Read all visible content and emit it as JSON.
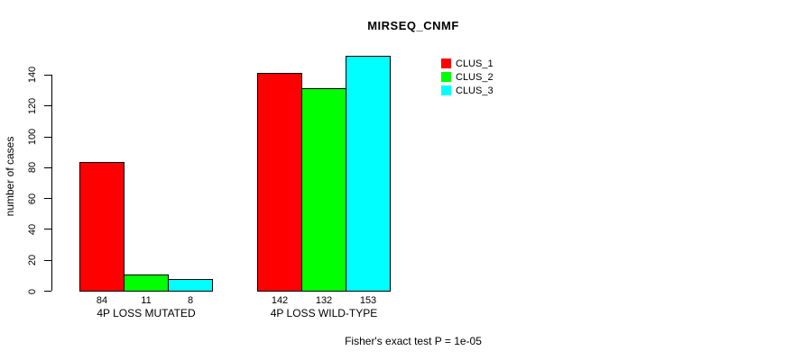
{
  "chart_data": {
    "type": "bar",
    "title": "MIRSEQ_CNMF",
    "ylabel": "number of cases",
    "xlabel": "",
    "categories": [
      "4P LOSS MUTATED",
      "4P LOSS WILD-TYPE"
    ],
    "series": [
      {
        "name": "CLUS_1",
        "color": "#ff0000",
        "values": [
          84,
          142
        ]
      },
      {
        "name": "CLUS_2",
        "color": "#00ff00",
        "values": [
          11,
          132
        ]
      },
      {
        "name": "CLUS_3",
        "color": "#00ffff",
        "values": [
          8,
          153
        ]
      }
    ],
    "y_ticks": [
      0,
      20,
      40,
      60,
      80,
      100,
      120,
      140
    ],
    "ylim": [
      0,
      153
    ],
    "grid": false,
    "legend_position": "top-right",
    "bar_value_labels_shown": true,
    "annotation": "Fisher's exact test P = 1e-05"
  }
}
